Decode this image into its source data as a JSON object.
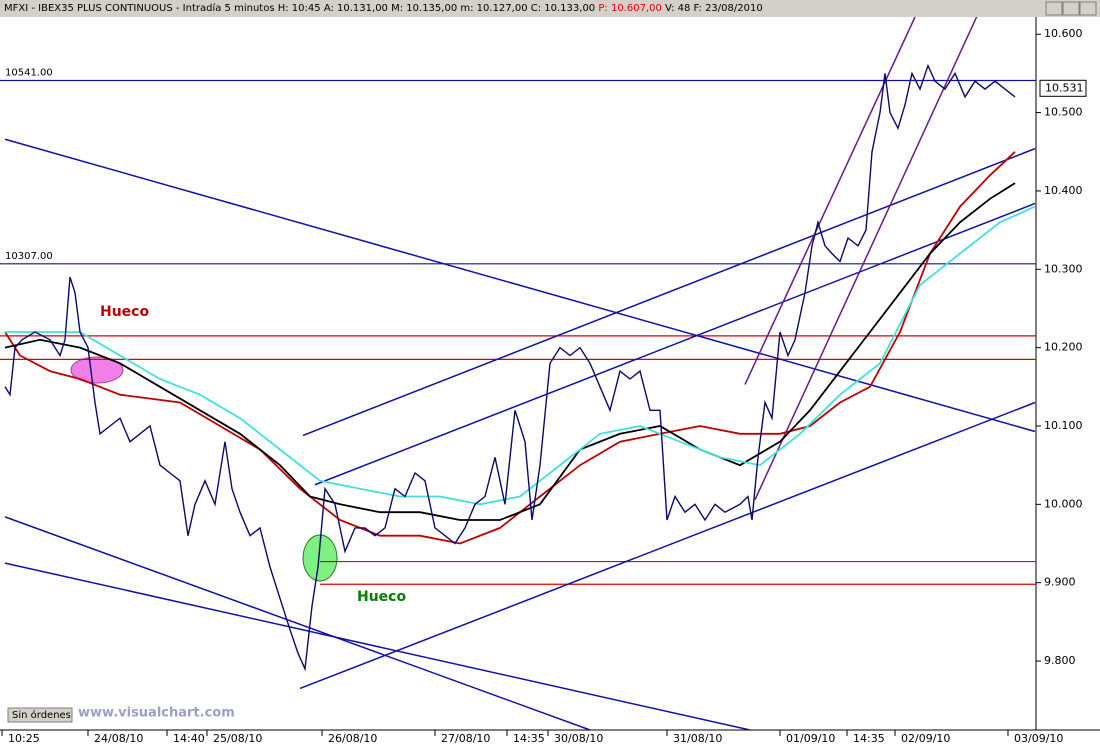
{
  "chart_data": {
    "type": "line",
    "title": "MFXI - IBEX35 PLUS CONTINUOUS - Intradía 5 minutos",
    "info": [
      "H: 10:45",
      "A: 10.131,00",
      "M: 10.135,00",
      "m: 10.127,00",
      "C: 10.133,00"
    ],
    "info_highlight": "P: 10.607,00",
    "info_tail": [
      "V: 48",
      "F: 23/08/2010"
    ],
    "xlim": [
      0,
      1036
    ],
    "ylim": [
      9.712,
      10.622
    ],
    "yticks": [
      {
        "value": 9.8,
        "label": "9.800"
      },
      {
        "value": 9.9,
        "label": "9.900"
      },
      {
        "value": 10.0,
        "label": "10.000"
      },
      {
        "value": 10.1,
        "label": "10.100"
      },
      {
        "value": 10.2,
        "label": "10.200"
      },
      {
        "value": 10.3,
        "label": "10.300"
      },
      {
        "value": 10.4,
        "label": "10.400"
      },
      {
        "value": 10.5,
        "label": "10.500"
      },
      {
        "value": 10.6,
        "label": "10.600"
      }
    ],
    "xticks": [
      {
        "value": 2,
        "label": "10:25"
      },
      {
        "value": 88,
        "label": "24/08/10"
      },
      {
        "value": 167,
        "label": "14:40"
      },
      {
        "value": 207,
        "label": "25/08/10"
      },
      {
        "value": 322,
        "label": "26/08/10"
      },
      {
        "value": 435,
        "label": "27/08/10"
      },
      {
        "value": 507,
        "label": "14:35"
      },
      {
        "value": 548,
        "label": "30/08/10"
      },
      {
        "value": 667,
        "label": "31/08/10"
      },
      {
        "value": 780,
        "label": "01/09/10"
      },
      {
        "value": 847,
        "label": "14:35"
      },
      {
        "value": 895,
        "label": "02/09/10"
      },
      {
        "value": 1008,
        "label": "03/09/10"
      }
    ],
    "series": [
      {
        "color": "#0a0a6e",
        "x": [
          5,
          10,
          15,
          22,
          35,
          50,
          60,
          65,
          70,
          75,
          80,
          88,
          95,
          100,
          110,
          120,
          130,
          140,
          150,
          160,
          170,
          180,
          188,
          195,
          205,
          215,
          225,
          232,
          240,
          250,
          260,
          270,
          280,
          290,
          298,
          305,
          312,
          318,
          325,
          335,
          345,
          355,
          365,
          375,
          385,
          395,
          405,
          415,
          425,
          435,
          445,
          455,
          465,
          475,
          485,
          495,
          505,
          515,
          525,
          532,
          540,
          550,
          560,
          570,
          580,
          590,
          600,
          610,
          620,
          630,
          640,
          650,
          660,
          667,
          675,
          685,
          695,
          705,
          715,
          725,
          740,
          748,
          752,
          758,
          765,
          772,
          780,
          788,
          795,
          805,
          812,
          818,
          825,
          832,
          840,
          848,
          858,
          866,
          872,
          880,
          885,
          890,
          898,
          905,
          912,
          920,
          928,
          935,
          945,
          955,
          965,
          975,
          985,
          995,
          1005,
          1015
        ],
        "values": [
          10.15,
          10.14,
          10.2,
          10.21,
          10.22,
          10.21,
          10.19,
          10.21,
          10.29,
          10.27,
          10.22,
          10.2,
          10.13,
          10.09,
          10.1,
          10.11,
          10.08,
          10.09,
          10.1,
          10.05,
          10.04,
          10.03,
          9.96,
          10.0,
          10.03,
          10.0,
          10.08,
          10.02,
          9.99,
          9.96,
          9.97,
          9.92,
          9.88,
          9.84,
          9.81,
          9.79,
          9.87,
          9.92,
          10.02,
          10.0,
          9.94,
          9.97,
          9.97,
          9.96,
          9.97,
          10.02,
          10.01,
          10.04,
          10.03,
          9.97,
          9.96,
          9.95,
          9.97,
          10.0,
          10.01,
          10.06,
          10.0,
          10.12,
          10.08,
          9.98,
          10.05,
          10.18,
          10.2,
          10.19,
          10.2,
          10.18,
          10.15,
          10.12,
          10.17,
          10.16,
          10.17,
          10.12,
          10.12,
          9.98,
          10.01,
          9.99,
          10.0,
          9.98,
          10.0,
          9.99,
          10.0,
          10.01,
          9.98,
          10.06,
          10.13,
          10.11,
          10.22,
          10.19,
          10.21,
          10.27,
          10.33,
          10.36,
          10.33,
          10.32,
          10.31,
          10.34,
          10.33,
          10.35,
          10.45,
          10.5,
          10.55,
          10.5,
          10.48,
          10.51,
          10.55,
          10.53,
          10.56,
          10.54,
          10.53,
          10.55,
          10.52,
          10.54,
          10.53,
          10.54,
          10.53,
          10.52
        ]
      },
      {
        "color": "#c00000",
        "x": [
          5,
          20,
          50,
          80,
          120,
          180,
          220,
          260,
          300,
          340,
          380,
          420,
          460,
          500,
          540,
          580,
          620,
          660,
          700,
          740,
          780,
          810,
          840,
          870,
          900,
          930,
          960,
          990,
          1015
        ],
        "values": [
          10.22,
          10.19,
          10.17,
          10.16,
          10.14,
          10.13,
          10.1,
          10.07,
          10.02,
          9.98,
          9.96,
          9.96,
          9.95,
          9.97,
          10.01,
          10.05,
          10.08,
          10.09,
          10.1,
          10.09,
          10.09,
          10.1,
          10.13,
          10.15,
          10.22,
          10.32,
          10.38,
          10.42,
          10.45
        ]
      },
      {
        "color": "#000000",
        "x": [
          5,
          40,
          80,
          120,
          160,
          200,
          240,
          280,
          310,
          340,
          380,
          420,
          460,
          500,
          540,
          580,
          620,
          660,
          700,
          740,
          780,
          810,
          840,
          870,
          900,
          930,
          960,
          990,
          1015
        ],
        "values": [
          10.2,
          10.21,
          10.2,
          10.18,
          10.15,
          10.12,
          10.09,
          10.05,
          10.01,
          10.0,
          9.99,
          9.99,
          9.98,
          9.98,
          10.0,
          10.07,
          10.09,
          10.1,
          10.07,
          10.05,
          10.08,
          10.12,
          10.17,
          10.22,
          10.27,
          10.32,
          10.36,
          10.39,
          10.41
        ]
      },
      {
        "color": "#40e0e0",
        "x": [
          5,
          40,
          80,
          120,
          160,
          200,
          240,
          280,
          320,
          360,
          400,
          440,
          480,
          520,
          560,
          600,
          640,
          680,
          720,
          760,
          800,
          840,
          880,
          920,
          960,
          1000,
          1035
        ],
        "values": [
          10.22,
          10.22,
          10.22,
          10.19,
          10.16,
          10.14,
          10.11,
          10.07,
          10.03,
          10.02,
          10.01,
          10.01,
          10.0,
          10.01,
          10.05,
          10.09,
          10.1,
          10.08,
          10.06,
          10.05,
          10.09,
          10.14,
          10.18,
          10.28,
          10.32,
          10.36,
          10.38
        ]
      }
    ],
    "trendlines": [
      {
        "color": "#1010b0",
        "x": [
          5,
          1035
        ],
        "y": [
          10.466,
          10.093
        ]
      },
      {
        "color": "#1010b0",
        "x": [
          5,
          590
        ],
        "y": [
          9.984,
          9.712
        ]
      },
      {
        "color": "#1010b0",
        "x": [
          5,
          750
        ],
        "y": [
          9.925,
          9.712
        ]
      },
      {
        "color": "#1010b0",
        "x": [
          300,
          1035
        ],
        "y": [
          9.765,
          10.13
        ]
      },
      {
        "color": "#1010b0",
        "x": [
          303,
          1035
        ],
        "y": [
          10.088,
          10.454
        ]
      },
      {
        "color": "#1010b0",
        "x": [
          315,
          1035
        ],
        "y": [
          10.025,
          10.384
        ]
      },
      {
        "color": "#6a1a8a",
        "x": [
          745,
          915
        ],
        "y": [
          10.153,
          10.622
        ]
      },
      {
        "color": "#6a1a8a",
        "x": [
          755,
          978
        ],
        "y": [
          10.006,
          10.626
        ]
      }
    ],
    "hlines": [
      {
        "value": 10.541,
        "label": "10541.00",
        "color": "#1010b0",
        "x_start": 0
      },
      {
        "value": 10.307,
        "label": "10307.00",
        "color": "#1010b0",
        "x_start": 0
      },
      {
        "value": 10.215,
        "color": "#e00000",
        "x_start": 0
      },
      {
        "value": 10.185,
        "color": "#e00000",
        "x_start": 0
      },
      {
        "value": 9.927,
        "color": "#e00000",
        "x_start": 320
      },
      {
        "value": 9.898,
        "color": "#e00000",
        "x_start": 320
      }
    ],
    "last_price": 10.531,
    "annotations": [
      {
        "text": "Hueco",
        "color": "#c00000"
      },
      {
        "text": "Hueco",
        "color": "#008000"
      }
    ],
    "status": "Sin órdenes",
    "watermark": "www.visualchart.com"
  }
}
